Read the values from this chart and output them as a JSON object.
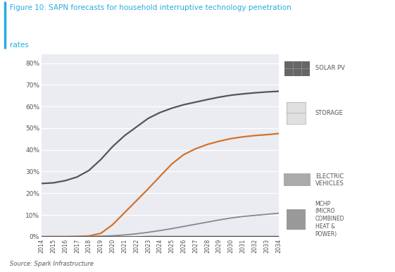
{
  "title_line1": "Figure 10: SAPN forecasts for household interruptive technology penetration",
  "title_line2": "rates",
  "title_color": "#29ABE2",
  "source": "Source: Spark Infrastructure",
  "years": [
    2014,
    2015,
    2016,
    2017,
    2018,
    2019,
    2020,
    2021,
    2022,
    2023,
    2024,
    2025,
    2026,
    2027,
    2028,
    2029,
    2030,
    2031,
    2032,
    2033,
    2034
  ],
  "solar_pv": [
    0.245,
    0.248,
    0.258,
    0.275,
    0.305,
    0.355,
    0.415,
    0.465,
    0.505,
    0.545,
    0.572,
    0.592,
    0.608,
    0.62,
    0.632,
    0.643,
    0.652,
    0.658,
    0.663,
    0.667,
    0.67
  ],
  "storage": [
    0.0,
    0.0,
    0.0,
    0.001,
    0.003,
    0.015,
    0.055,
    0.11,
    0.165,
    0.22,
    0.278,
    0.335,
    0.378,
    0.405,
    0.425,
    0.44,
    0.452,
    0.46,
    0.466,
    0.47,
    0.475
  ],
  "electric_vehicles": [
    0.0,
    0.0,
    0.0,
    0.0,
    0.001,
    0.002,
    0.004,
    0.008,
    0.013,
    0.02,
    0.028,
    0.037,
    0.047,
    0.057,
    0.067,
    0.077,
    0.086,
    0.093,
    0.098,
    0.103,
    0.108
  ],
  "mchp": [
    0.0,
    0.0,
    0.0,
    0.0,
    0.0,
    0.0,
    0.0,
    0.0,
    0.0,
    0.001,
    0.001,
    0.001,
    0.001,
    0.001,
    0.001,
    0.001,
    0.001,
    0.001,
    0.001,
    0.001,
    0.001
  ],
  "solar_pv_color": "#555555",
  "storage_color": "#D4722A",
  "electric_vehicles_color": "#888888",
  "mchp_color": "#444444",
  "plot_bg_color": "#EAECF2",
  "grid_color": "#FFFFFF",
  "ylim": [
    0.0,
    0.84
  ],
  "yticks": [
    0.0,
    0.1,
    0.2,
    0.3,
    0.4,
    0.5,
    0.6,
    0.7,
    0.8
  ],
  "ytick_labels": [
    "0%",
    "10%",
    "20%",
    "30%",
    "40%",
    "50%",
    "60%",
    "70%",
    "80%"
  ],
  "label_solar": "SOLAR PV",
  "label_storage": "STORAGE",
  "label_ev": "ELECTRIC\nVEHICLES",
  "label_mchp": "MCHP\n(MICRO\nCOMBINED\nHEAT &\nPOWER)"
}
